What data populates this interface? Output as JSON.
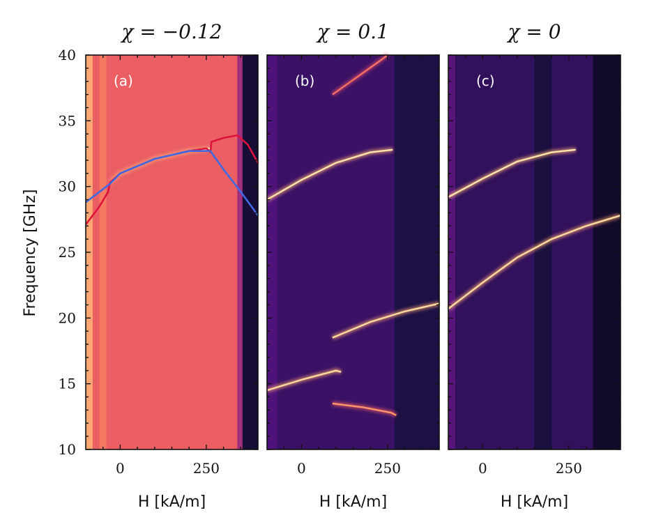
{
  "chart_data": {
    "type": "heatmap",
    "shared_ylabel": "Frequency [GHz]",
    "ylim": [
      10,
      40
    ],
    "yticks": [
      "10",
      "15",
      "20",
      "25",
      "30",
      "35",
      "40"
    ],
    "xlim": [
      -100,
      400
    ],
    "xticks": [
      {
        "value": 0,
        "label": "0"
      },
      {
        "value": 250,
        "label": "250"
      }
    ],
    "colormap": "magma",
    "panels": [
      {
        "id": "a",
        "title": "χ = −0.12",
        "label": "(a)",
        "xlabel": "H [kA/m]",
        "background": {
          "base": 0.66,
          "bands": [
            {
              "x": [
                -100,
                -80
              ],
              "v": 0.82
            },
            {
              "x": [
                -60,
                -40
              ],
              "v": 0.72
            },
            {
              "x": [
                340,
                355
              ],
              "v": 0.45
            },
            {
              "x": [
                355,
                400
              ],
              "v": 0.1
            }
          ]
        },
        "modes": [
          {
            "color": "#dc143c",
            "points": [
              [
                -100,
                27.1
              ],
              [
                -60,
                28.5
              ],
              [
                -35,
                29.6
              ],
              [
                -30,
                30.3
              ],
              [
                0,
                31.0
              ],
              [
                100,
                32.1
              ],
              [
                200,
                32.7
              ],
              [
                250,
                32.9
              ],
              [
                255,
                32.8
              ],
              [
                262,
                32.6
              ],
              [
                265,
                33.4
              ],
              [
                300,
                33.7
              ],
              [
                340,
                33.9
              ],
              [
                370,
                33.2
              ],
              [
                400,
                31.8
              ]
            ]
          },
          {
            "color": "#4169e1",
            "points": [
              [
                -100,
                28.8
              ],
              [
                -60,
                29.6
              ],
              [
                -30,
                30.2
              ],
              [
                0,
                31.0
              ],
              [
                100,
                32.1
              ],
              [
                200,
                32.7
              ],
              [
                262,
                32.7
              ],
              [
                300,
                31.3
              ],
              [
                350,
                29.6
              ],
              [
                400,
                27.8
              ]
            ]
          }
        ],
        "bright_traces": [
          {
            "points": [
              [
                -30,
                30.3
              ],
              [
                0,
                31.0
              ],
              [
                100,
                32.1
              ],
              [
                200,
                32.7
              ],
              [
                262,
                32.9
              ]
            ],
            "v": 0.97
          }
        ]
      },
      {
        "id": "b",
        "title": "χ = 0.1",
        "label": "(b)",
        "xlabel": "H [kA/m]",
        "background": {
          "base": 0.2,
          "bands": [
            {
              "x": [
                270,
                400
              ],
              "v": 0.13
            },
            {
              "x": [
                -100,
                -70
              ],
              "v": 0.25
            }
          ]
        },
        "modes": [],
        "bright_traces": [
          {
            "points": [
              [
                -100,
                29.0
              ],
              [
                0,
                30.5
              ],
              [
                100,
                31.8
              ],
              [
                200,
                32.6
              ],
              [
                265,
                32.8
              ]
            ],
            "v": 0.95
          },
          {
            "points": [
              [
                -100,
                14.5
              ],
              [
                0,
                15.3
              ],
              [
                100,
                16.0
              ],
              [
                115,
                15.9
              ]
            ],
            "v": 0.93
          },
          {
            "points": [
              [
                90,
                18.5
              ],
              [
                200,
                19.7
              ],
              [
                300,
                20.5
              ],
              [
                400,
                21.1
              ]
            ],
            "v": 0.93
          },
          {
            "points": [
              [
                90,
                13.5
              ],
              [
                180,
                13.2
              ],
              [
                260,
                12.8
              ],
              [
                275,
                12.6
              ]
            ],
            "v": 0.78
          },
          {
            "points": [
              [
                90,
                37.0
              ],
              [
                160,
                38.3
              ],
              [
                230,
                39.6
              ],
              [
                250,
                40.0
              ]
            ],
            "v": 0.7
          }
        ]
      },
      {
        "id": "c",
        "title": "χ = 0",
        "label": "(c)",
        "xlabel": "H [kA/m]",
        "background": {
          "base": 0.18,
          "bands": [
            {
              "x": [
                -100,
                -80
              ],
              "v": 0.27
            },
            {
              "x": [
                150,
                200
              ],
              "v": 0.12
            },
            {
              "x": [
                320,
                400
              ],
              "v": 0.08
            }
          ]
        },
        "modes": [],
        "bright_traces": [
          {
            "points": [
              [
                -100,
                29.2
              ],
              [
                0,
                30.6
              ],
              [
                100,
                31.9
              ],
              [
                200,
                32.6
              ],
              [
                270,
                32.8
              ]
            ],
            "v": 0.95
          },
          {
            "points": [
              [
                -100,
                20.7
              ],
              [
                0,
                22.7
              ],
              [
                100,
                24.6
              ],
              [
                200,
                26.0
              ],
              [
                300,
                27.0
              ],
              [
                400,
                27.8
              ]
            ],
            "v": 0.93
          }
        ]
      }
    ]
  }
}
